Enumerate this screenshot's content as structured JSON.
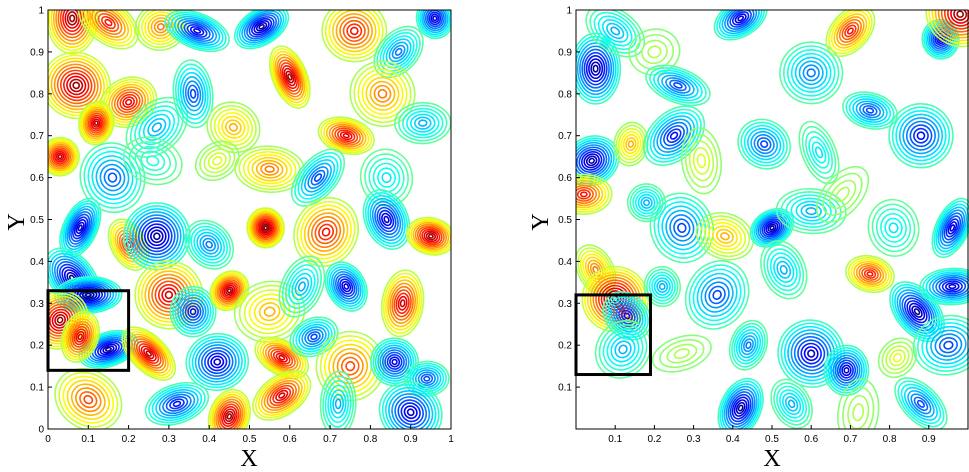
{
  "chart_data": [
    {
      "type": "contour",
      "panel": "left",
      "xlabel": "X",
      "ylabel": "Y",
      "xlim": [
        0,
        1
      ],
      "ylim": [
        0,
        1
      ],
      "xticks": [
        "0",
        "0.1",
        "0.2",
        "0.3",
        "0.4",
        "0.5",
        "0.6",
        "0.7",
        "0.8",
        "0.9",
        "1"
      ],
      "yticks": [
        "0",
        "0.1",
        "0.2",
        "0.3",
        "0.4",
        "0.5",
        "0.6",
        "0.7",
        "0.8",
        "0.9",
        "1"
      ],
      "colormap": "jet",
      "highlight_box": {
        "x": [
          0.0,
          0.2
        ],
        "y": [
          0.14,
          0.33
        ]
      },
      "features": [
        {
          "x": 0.06,
          "y": 0.98,
          "v": 0.95
        },
        {
          "x": 0.15,
          "y": 0.97,
          "v": 0.85
        },
        {
          "x": 0.28,
          "y": 0.96,
          "v": 0.75
        },
        {
          "x": 0.37,
          "y": 0.95,
          "v": 0.12
        },
        {
          "x": 0.53,
          "y": 0.96,
          "v": 0.05
        },
        {
          "x": 0.76,
          "y": 0.95,
          "v": 0.85
        },
        {
          "x": 0.87,
          "y": 0.9,
          "v": 0.25
        },
        {
          "x": 0.96,
          "y": 0.98,
          "v": 0.1
        },
        {
          "x": 0.07,
          "y": 0.82,
          "v": 0.95
        },
        {
          "x": 0.2,
          "y": 0.78,
          "v": 0.88
        },
        {
          "x": 0.12,
          "y": 0.73,
          "v": 0.92
        },
        {
          "x": 0.27,
          "y": 0.72,
          "v": 0.3
        },
        {
          "x": 0.36,
          "y": 0.8,
          "v": 0.2
        },
        {
          "x": 0.46,
          "y": 0.72,
          "v": 0.7
        },
        {
          "x": 0.6,
          "y": 0.84,
          "v": 0.95
        },
        {
          "x": 0.74,
          "y": 0.7,
          "v": 0.9
        },
        {
          "x": 0.83,
          "y": 0.8,
          "v": 0.75
        },
        {
          "x": 0.93,
          "y": 0.73,
          "v": 0.3
        },
        {
          "x": 0.03,
          "y": 0.65,
          "v": 0.92
        },
        {
          "x": 0.16,
          "y": 0.6,
          "v": 0.22
        },
        {
          "x": 0.26,
          "y": 0.64,
          "v": 0.4
        },
        {
          "x": 0.42,
          "y": 0.64,
          "v": 0.6
        },
        {
          "x": 0.55,
          "y": 0.62,
          "v": 0.75
        },
        {
          "x": 0.67,
          "y": 0.6,
          "v": 0.2
        },
        {
          "x": 0.84,
          "y": 0.6,
          "v": 0.35
        },
        {
          "x": 0.08,
          "y": 0.48,
          "v": 0.08
        },
        {
          "x": 0.2,
          "y": 0.44,
          "v": 0.85
        },
        {
          "x": 0.27,
          "y": 0.46,
          "v": 0.05
        },
        {
          "x": 0.4,
          "y": 0.44,
          "v": 0.25
        },
        {
          "x": 0.54,
          "y": 0.48,
          "v": 0.98
        },
        {
          "x": 0.69,
          "y": 0.47,
          "v": 0.85
        },
        {
          "x": 0.84,
          "y": 0.5,
          "v": 0.1
        },
        {
          "x": 0.95,
          "y": 0.46,
          "v": 0.95
        },
        {
          "x": 0.06,
          "y": 0.36,
          "v": 0.05
        },
        {
          "x": 0.1,
          "y": 0.32,
          "v": 0.02
        },
        {
          "x": 0.03,
          "y": 0.26,
          "v": 0.95
        },
        {
          "x": 0.15,
          "y": 0.19,
          "v": 0.05
        },
        {
          "x": 0.08,
          "y": 0.22,
          "v": 0.9
        },
        {
          "x": 0.3,
          "y": 0.32,
          "v": 0.9
        },
        {
          "x": 0.36,
          "y": 0.28,
          "v": 0.15
        },
        {
          "x": 0.45,
          "y": 0.33,
          "v": 0.95
        },
        {
          "x": 0.55,
          "y": 0.28,
          "v": 0.7
        },
        {
          "x": 0.63,
          "y": 0.34,
          "v": 0.3
        },
        {
          "x": 0.74,
          "y": 0.34,
          "v": 0.1
        },
        {
          "x": 0.88,
          "y": 0.3,
          "v": 0.9
        },
        {
          "x": 0.25,
          "y": 0.18,
          "v": 0.92
        },
        {
          "x": 0.42,
          "y": 0.16,
          "v": 0.1
        },
        {
          "x": 0.58,
          "y": 0.17,
          "v": 0.9
        },
        {
          "x": 0.66,
          "y": 0.22,
          "v": 0.2
        },
        {
          "x": 0.75,
          "y": 0.15,
          "v": 0.8
        },
        {
          "x": 0.86,
          "y": 0.16,
          "v": 0.12
        },
        {
          "x": 0.94,
          "y": 0.12,
          "v": 0.2
        },
        {
          "x": 0.1,
          "y": 0.07,
          "v": 0.8
        },
        {
          "x": 0.32,
          "y": 0.06,
          "v": 0.15
        },
        {
          "x": 0.45,
          "y": 0.03,
          "v": 0.95
        },
        {
          "x": 0.58,
          "y": 0.08,
          "v": 0.9
        },
        {
          "x": 0.72,
          "y": 0.06,
          "v": 0.3
        },
        {
          "x": 0.9,
          "y": 0.04,
          "v": 0.1
        }
      ]
    },
    {
      "type": "contour",
      "panel": "right",
      "xlabel": "X",
      "ylabel": "Y",
      "xlim": [
        0,
        1
      ],
      "ylim": [
        0,
        1
      ],
      "xticks": [
        "0.1",
        "0.2",
        "0.3",
        "0.4",
        "0.5",
        "0.6",
        "0.7",
        "0.8",
        "0.9"
      ],
      "yticks": [
        "0.1",
        "0.2",
        "0.3",
        "0.4",
        "0.5",
        "0.6",
        "0.7",
        "0.8",
        "0.9",
        "1"
      ],
      "colormap": "jet",
      "highlight_box": {
        "x": [
          0.0,
          0.19
        ],
        "y": [
          0.13,
          0.32
        ]
      },
      "features": [
        {
          "x": 0.05,
          "y": 0.86,
          "v": 0.05
        },
        {
          "x": 0.1,
          "y": 0.95,
          "v": 0.3
        },
        {
          "x": 0.2,
          "y": 0.9,
          "v": 0.55
        },
        {
          "x": 0.26,
          "y": 0.82,
          "v": 0.2
        },
        {
          "x": 0.42,
          "y": 0.98,
          "v": 0.1
        },
        {
          "x": 0.6,
          "y": 0.85,
          "v": 0.25
        },
        {
          "x": 0.7,
          "y": 0.95,
          "v": 0.85
        },
        {
          "x": 0.93,
          "y": 0.93,
          "v": 0.1
        },
        {
          "x": 0.98,
          "y": 0.99,
          "v": 0.95
        },
        {
          "x": 0.04,
          "y": 0.64,
          "v": 0.05
        },
        {
          "x": 0.14,
          "y": 0.68,
          "v": 0.7
        },
        {
          "x": 0.25,
          "y": 0.7,
          "v": 0.15
        },
        {
          "x": 0.32,
          "y": 0.64,
          "v": 0.6
        },
        {
          "x": 0.48,
          "y": 0.68,
          "v": 0.2
        },
        {
          "x": 0.62,
          "y": 0.66,
          "v": 0.35
        },
        {
          "x": 0.75,
          "y": 0.76,
          "v": 0.2
        },
        {
          "x": 0.88,
          "y": 0.7,
          "v": 0.15
        },
        {
          "x": 0.02,
          "y": 0.56,
          "v": 0.85
        },
        {
          "x": 0.18,
          "y": 0.54,
          "v": 0.3
        },
        {
          "x": 0.27,
          "y": 0.48,
          "v": 0.2
        },
        {
          "x": 0.38,
          "y": 0.46,
          "v": 0.7
        },
        {
          "x": 0.5,
          "y": 0.48,
          "v": 0.05
        },
        {
          "x": 0.6,
          "y": 0.52,
          "v": 0.3
        },
        {
          "x": 0.68,
          "y": 0.56,
          "v": 0.55
        },
        {
          "x": 0.81,
          "y": 0.48,
          "v": 0.35
        },
        {
          "x": 0.96,
          "y": 0.48,
          "v": 0.1
        },
        {
          "x": 0.05,
          "y": 0.38,
          "v": 0.75
        },
        {
          "x": 0.1,
          "y": 0.31,
          "v": 0.98
        },
        {
          "x": 0.13,
          "y": 0.27,
          "v": 0.15
        },
        {
          "x": 0.22,
          "y": 0.34,
          "v": 0.3
        },
        {
          "x": 0.36,
          "y": 0.32,
          "v": 0.2
        },
        {
          "x": 0.53,
          "y": 0.38,
          "v": 0.3
        },
        {
          "x": 0.75,
          "y": 0.37,
          "v": 0.85
        },
        {
          "x": 0.87,
          "y": 0.28,
          "v": 0.05
        },
        {
          "x": 0.96,
          "y": 0.34,
          "v": 0.1
        },
        {
          "x": 0.12,
          "y": 0.19,
          "v": 0.3
        },
        {
          "x": 0.27,
          "y": 0.18,
          "v": 0.55
        },
        {
          "x": 0.44,
          "y": 0.2,
          "v": 0.25
        },
        {
          "x": 0.6,
          "y": 0.18,
          "v": 0.1
        },
        {
          "x": 0.69,
          "y": 0.14,
          "v": 0.1
        },
        {
          "x": 0.82,
          "y": 0.17,
          "v": 0.6
        },
        {
          "x": 0.95,
          "y": 0.2,
          "v": 0.2
        },
        {
          "x": 0.42,
          "y": 0.05,
          "v": 0.05
        },
        {
          "x": 0.55,
          "y": 0.06,
          "v": 0.3
        },
        {
          "x": 0.72,
          "y": 0.04,
          "v": 0.55
        },
        {
          "x": 0.88,
          "y": 0.06,
          "v": 0.2
        }
      ]
    }
  ]
}
